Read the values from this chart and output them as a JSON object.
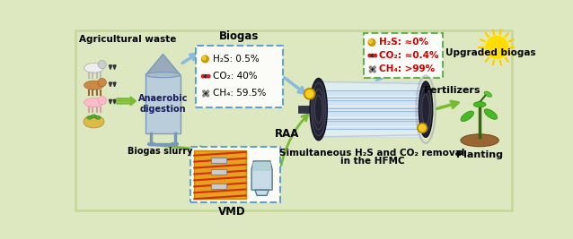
{
  "bg_color": "#dde8c0",
  "left_label": "Agricultural waste",
  "digester_label": "Anaerobic\ndigestion",
  "biogas_label": "Biogas",
  "biogas_entries": [
    {
      "symbol": "H₂S: 0.5%",
      "color": "#808000",
      "type": "sphere"
    },
    {
      "symbol": "CO₂: 40%",
      "color": "#cc0000",
      "type": "bar"
    },
    {
      "symbol": "CH₄: 59.5%",
      "color": "#333333",
      "type": "molecule"
    }
  ],
  "slurry_label": "Biogas slurry",
  "vmd_label": "VMD",
  "raa_label": "RAA",
  "hfmc_label1": "Simultaneous H₂S and CO₂ removal",
  "hfmc_label2": "in the HFMC",
  "upgraded_label": "Upgraded biogas",
  "upgraded_entries": [
    {
      "symbol": "H₂S: ≈0%",
      "color": "#cc0000",
      "type": "sphere"
    },
    {
      "symbol": "CO₂: ≈0.4%",
      "color": "#cc0000",
      "type": "bar"
    },
    {
      "symbol": "CH₄: >99%",
      "color": "#cc0000",
      "type": "molecule"
    }
  ],
  "fertilizers_label": "Fertilizers",
  "planting_label": "Planting",
  "green_arrow": "#77bb33",
  "blue_arrow": "#88bbdd"
}
